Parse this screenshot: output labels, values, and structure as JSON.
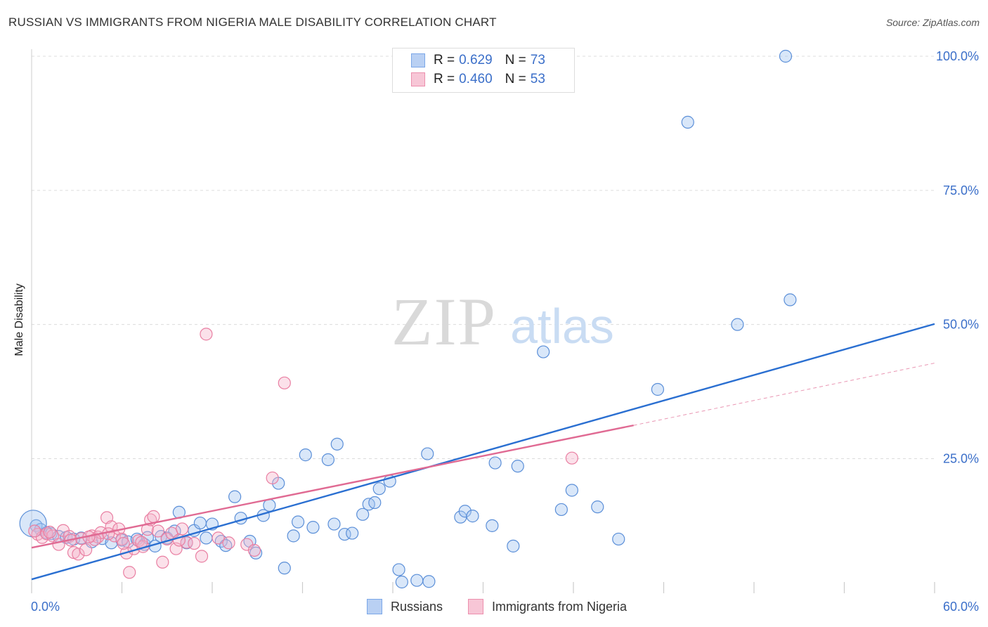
{
  "title": "RUSSIAN VS IMMIGRANTS FROM NIGERIA MALE DISABILITY CORRELATION CHART",
  "source": "Source: ZipAtlas.com",
  "watermark": {
    "zip": "ZIP",
    "atlas": "atlas"
  },
  "legend": {
    "r_label": "R =",
    "n_label": "N =",
    "series": [
      {
        "name": "Russians",
        "r": "0.629",
        "n": "73",
        "color": "#7ba7e8",
        "fill": "#b9d0f3"
      },
      {
        "name": "Immigrants from Nigeria",
        "r": "0.460",
        "n": "53",
        "color": "#ec8fad",
        "fill": "#f7c6d6"
      }
    ]
  },
  "chart_data": {
    "type": "scatter",
    "title": "RUSSIAN VS IMMIGRANTS FROM NIGERIA MALE DISABILITY CORRELATION CHART",
    "xlabel": "",
    "ylabel": "Male Disability",
    "xlim": [
      0,
      60
    ],
    "ylim": [
      0,
      102
    ],
    "x_tick_labels": [
      "0.0%",
      "60.0%"
    ],
    "y_tick_labels": [
      "100.0%",
      "75.0%",
      "50.0%",
      "25.0%"
    ],
    "y_ticks": [
      100,
      75,
      50,
      25
    ],
    "grid": true,
    "legend_position": "bottom",
    "series": [
      {
        "name": "Russians",
        "color": "#5b8fd8",
        "line_color": "#2a6fd1",
        "trend": {
          "x": [
            0,
            60
          ],
          "y": [
            2.5,
            50.1
          ]
        },
        "points": [
          [
            0.3,
            12.5
          ],
          [
            0.6,
            11.8
          ],
          [
            1.0,
            11.2
          ],
          [
            1.3,
            11.0
          ],
          [
            1.8,
            10.5
          ],
          [
            2.3,
            10.3
          ],
          [
            2.8,
            10.0
          ],
          [
            3.3,
            10.2
          ],
          [
            4.0,
            9.5
          ],
          [
            4.7,
            10.1
          ],
          [
            5.3,
            9.3
          ],
          [
            6.0,
            9.8
          ],
          [
            6.4,
            9.5
          ],
          [
            7.0,
            10.0
          ],
          [
            7.5,
            9.0
          ],
          [
            7.7,
            10.3
          ],
          [
            8.2,
            8.7
          ],
          [
            8.6,
            10.5
          ],
          [
            9.0,
            10.2
          ],
          [
            9.5,
            11.5
          ],
          [
            9.8,
            15.0
          ],
          [
            10.3,
            9.3
          ],
          [
            10.8,
            11.6
          ],
          [
            11.2,
            13.0
          ],
          [
            11.6,
            10.2
          ],
          [
            12.0,
            12.8
          ],
          [
            12.6,
            9.6
          ],
          [
            12.9,
            8.8
          ],
          [
            13.5,
            17.9
          ],
          [
            13.9,
            13.9
          ],
          [
            14.5,
            9.6
          ],
          [
            14.9,
            7.4
          ],
          [
            15.4,
            14.4
          ],
          [
            15.8,
            16.3
          ],
          [
            16.4,
            20.4
          ],
          [
            16.8,
            4.6
          ],
          [
            17.4,
            10.6
          ],
          [
            17.7,
            13.2
          ],
          [
            18.2,
            25.7
          ],
          [
            18.7,
            12.2
          ],
          [
            19.7,
            24.8
          ],
          [
            20.1,
            12.8
          ],
          [
            20.3,
            27.7
          ],
          [
            20.8,
            10.9
          ],
          [
            21.3,
            11.1
          ],
          [
            22.0,
            14.6
          ],
          [
            22.4,
            16.5
          ],
          [
            22.8,
            16.8
          ],
          [
            23.1,
            19.4
          ],
          [
            23.8,
            20.8
          ],
          [
            24.4,
            4.3
          ],
          [
            24.6,
            2.0
          ],
          [
            25.6,
            2.3
          ],
          [
            26.3,
            25.9
          ],
          [
            26.4,
            2.1
          ],
          [
            28.5,
            14.1
          ],
          [
            28.8,
            15.2
          ],
          [
            29.3,
            14.3
          ],
          [
            30.6,
            12.5
          ],
          [
            30.8,
            24.2
          ],
          [
            32.0,
            8.7
          ],
          [
            32.3,
            23.6
          ],
          [
            34.0,
            44.9
          ],
          [
            35.2,
            15.5
          ],
          [
            35.9,
            19.1
          ],
          [
            37.6,
            16.0
          ],
          [
            39.0,
            10.0
          ],
          [
            41.6,
            37.9
          ],
          [
            43.6,
            87.7
          ],
          [
            46.9,
            50.0
          ],
          [
            50.4,
            54.6
          ],
          [
            50.1,
            100.0
          ],
          [
            0.1,
            12.9
          ]
        ]
      },
      {
        "name": "Immigrants from Nigeria",
        "color": "#e97fa2",
        "line_color": "#e06a93",
        "trend": {
          "x": [
            0,
            40
          ],
          "y": [
            8.4,
            31.2
          ]
        },
        "trend_dashed": {
          "x": [
            40,
            60
          ],
          "y": [
            31.2,
            42.8
          ]
        },
        "points": [
          [
            0.4,
            10.9
          ],
          [
            0.7,
            10.3
          ],
          [
            1.0,
            11.0
          ],
          [
            1.4,
            10.6
          ],
          [
            1.8,
            9.0
          ],
          [
            2.1,
            11.6
          ],
          [
            2.5,
            10.5
          ],
          [
            2.8,
            7.5
          ],
          [
            3.1,
            7.2
          ],
          [
            3.3,
            10.1
          ],
          [
            3.6,
            8.0
          ],
          [
            4.0,
            10.6
          ],
          [
            4.4,
            10.4
          ],
          [
            4.6,
            11.2
          ],
          [
            5.0,
            14.0
          ],
          [
            5.3,
            12.3
          ],
          [
            5.5,
            10.6
          ],
          [
            5.8,
            11.9
          ],
          [
            6.0,
            10.0
          ],
          [
            6.3,
            7.4
          ],
          [
            6.5,
            3.8
          ],
          [
            6.8,
            8.2
          ],
          [
            7.1,
            9.7
          ],
          [
            7.4,
            8.6
          ],
          [
            7.7,
            11.8
          ],
          [
            7.9,
            13.6
          ],
          [
            8.1,
            14.2
          ],
          [
            8.4,
            11.5
          ],
          [
            8.7,
            5.7
          ],
          [
            9.0,
            10.0
          ],
          [
            9.3,
            11.1
          ],
          [
            9.6,
            8.2
          ],
          [
            10.0,
            11.9
          ],
          [
            10.3,
            9.4
          ],
          [
            10.8,
            9.2
          ],
          [
            11.3,
            6.8
          ],
          [
            11.6,
            48.2
          ],
          [
            12.4,
            10.2
          ],
          [
            13.1,
            9.3
          ],
          [
            14.3,
            9.0
          ],
          [
            14.8,
            7.9
          ],
          [
            16.0,
            21.4
          ],
          [
            16.8,
            39.1
          ],
          [
            35.9,
            25.1
          ],
          [
            0.2,
            11.5
          ],
          [
            1.2,
            11.3
          ],
          [
            2.6,
            9.8
          ],
          [
            4.2,
            9.9
          ],
          [
            6.1,
            9.2
          ],
          [
            7.3,
            9.4
          ],
          [
            9.8,
            9.8
          ],
          [
            5.1,
            11.0
          ],
          [
            3.8,
            10.4
          ]
        ]
      }
    ]
  }
}
